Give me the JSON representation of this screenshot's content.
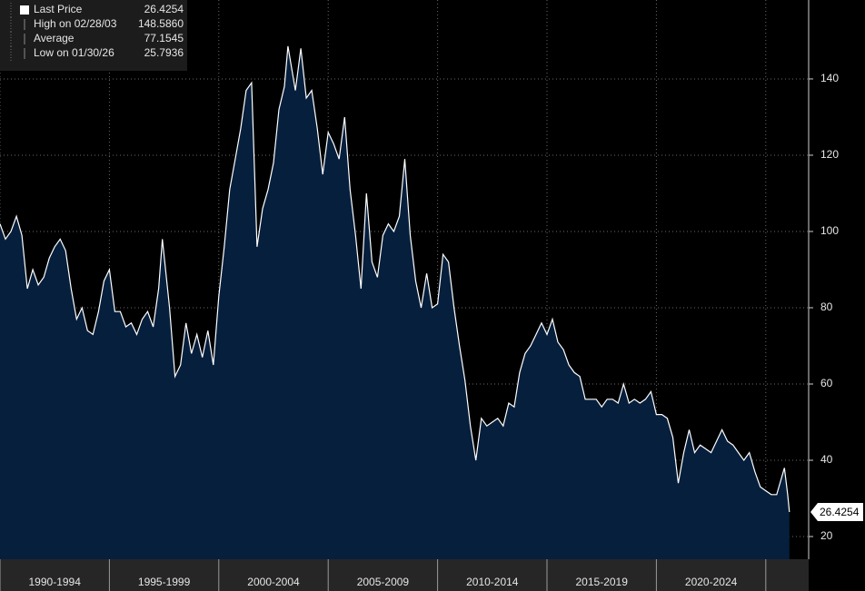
{
  "chart_data": {
    "type": "area",
    "stats": [
      {
        "name": "Last Price",
        "value": "26.4254"
      },
      {
        "name": "High on 02/28/03",
        "value": "148.5860"
      },
      {
        "name": "Average",
        "value": "77.1545"
      },
      {
        "name": "Low on 01/30/26",
        "value": "25.7936"
      }
    ],
    "x": [
      1990.0,
      1990.25,
      1990.5,
      1990.75,
      1991.0,
      1991.25,
      1991.5,
      1991.75,
      1992.0,
      1992.25,
      1992.5,
      1992.75,
      1993.0,
      1993.25,
      1993.5,
      1993.75,
      1994.0,
      1994.25,
      1994.5,
      1994.75,
      1995.0,
      1995.25,
      1995.5,
      1995.75,
      1996.0,
      1996.25,
      1996.5,
      1996.75,
      1997.0,
      1997.25,
      1997.42,
      1997.75,
      1998.0,
      1998.25,
      1998.5,
      1998.75,
      1999.0,
      1999.25,
      1999.5,
      1999.75,
      2000.0,
      2000.25,
      2000.5,
      2000.75,
      2001.0,
      2001.25,
      2001.5,
      2001.75,
      2002.0,
      2002.25,
      2002.5,
      2002.75,
      2003.0,
      2003.16,
      2003.5,
      2003.75,
      2004.0,
      2004.25,
      2004.5,
      2004.75,
      2005.0,
      2005.25,
      2005.5,
      2005.75,
      2006.0,
      2006.25,
      2006.5,
      2006.75,
      2007.0,
      2007.25,
      2007.5,
      2007.75,
      2008.0,
      2008.25,
      2008.5,
      2008.75,
      2009.0,
      2009.25,
      2009.5,
      2009.75,
      2010.0,
      2010.25,
      2010.5,
      2010.75,
      2011.0,
      2011.25,
      2011.5,
      2011.75,
      2012.0,
      2012.25,
      2012.5,
      2012.75,
      2013.0,
      2013.25,
      2013.5,
      2013.75,
      2014.0,
      2014.25,
      2014.5,
      2014.75,
      2015.0,
      2015.25,
      2015.5,
      2015.75,
      2016.0,
      2016.25,
      2016.5,
      2016.75,
      2017.0,
      2017.25,
      2017.5,
      2017.75,
      2018.0,
      2018.25,
      2018.5,
      2018.75,
      2019.0,
      2019.25,
      2019.5,
      2019.75,
      2020.0,
      2020.25,
      2020.5,
      2020.75,
      2021.0,
      2021.25,
      2021.5,
      2021.75,
      2022.0,
      2022.25,
      2022.5,
      2022.75,
      2023.0,
      2023.25,
      2023.5,
      2023.75,
      2024.0,
      2024.25,
      2024.5,
      2024.75,
      2025.0,
      2025.25,
      2025.5,
      2025.85,
      2026.0,
      2026.08
    ],
    "series": [
      {
        "name": "Last Price",
        "color": "#ffffff",
        "fill": "#061f3d",
        "values": [
          102,
          98,
          100,
          104,
          99,
          85,
          90,
          86,
          88,
          93,
          96,
          98,
          95,
          85,
          77,
          80,
          74,
          73,
          79,
          87,
          90,
          79,
          79,
          75,
          76,
          73,
          77,
          79,
          75,
          85,
          98,
          80,
          62,
          65,
          76,
          68,
          73,
          67,
          74,
          65,
          83,
          96,
          111,
          119,
          127,
          137,
          139,
          96,
          106,
          111,
          118,
          132,
          138,
          148.586,
          137,
          148,
          135,
          137,
          127,
          115,
          126,
          123,
          119,
          130,
          111,
          99,
          85,
          110,
          92,
          88,
          99,
          102,
          100,
          104,
          119,
          99,
          87,
          80,
          89,
          80,
          81,
          94,
          92,
          80,
          70,
          61,
          49,
          40,
          51,
          49,
          50,
          51,
          49,
          55,
          54,
          63,
          68,
          70,
          73,
          76,
          73,
          77,
          71,
          69,
          65,
          63,
          62,
          56,
          56,
          56,
          54,
          56,
          56,
          55,
          60,
          55,
          56,
          55,
          56,
          58,
          52,
          52,
          51,
          46,
          34,
          42,
          48,
          42,
          44,
          43,
          42,
          45,
          48,
          45,
          44,
          42,
          40,
          42,
          37,
          33,
          32,
          31,
          31,
          38,
          31,
          26.4254
        ]
      }
    ],
    "xlim": [
      1990,
      2026.96
    ],
    "xticks": [
      {
        "value": 1990,
        "label": "1990-1994"
      },
      {
        "value": 1995,
        "label": "1995-1999"
      },
      {
        "value": 2000,
        "label": "2000-2004"
      },
      {
        "value": 2005,
        "label": "2005-2009"
      },
      {
        "value": 2010,
        "label": "2010-2014"
      },
      {
        "value": 2015,
        "label": "2015-2019"
      },
      {
        "value": 2020,
        "label": "2020-2024"
      },
      2025
    ],
    "ylim": [
      14.05,
      160.7
    ],
    "yticks": [
      20,
      40,
      60,
      80,
      100,
      120,
      140
    ],
    "grid": true
  }
}
